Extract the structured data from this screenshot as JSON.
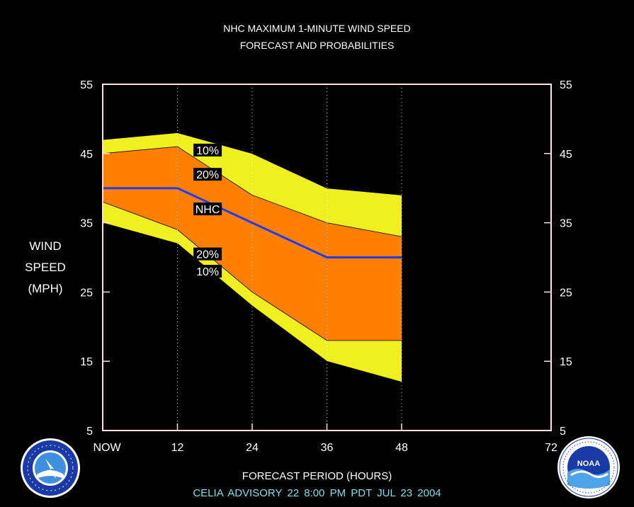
{
  "header": {
    "title_line1": "NHC MAXIMUM 1-MINUTE WIND SPEED",
    "title_line2": "FORECAST AND PROBABILITIES"
  },
  "ylabel": {
    "line1": "WIND",
    "line2": "SPEED",
    "line3": "(MPH)"
  },
  "xlabel": "FORECAST PERIOD (HOURS)",
  "advisory": "CELIA   ADVISORY  22 8:00  PM  PDT  JUL 23  2004",
  "logos": {
    "left_icon": "nws-logo-icon",
    "right_icon": "noaa-logo-icon",
    "right_text": "NOAA"
  },
  "colors": {
    "band_10": "#f0f020",
    "band_20": "#ff8000",
    "nhc_line": "#1e3cff",
    "frame": "#ffe0e0",
    "advisory_text": "#7fdfef"
  },
  "chart_data": {
    "type": "area",
    "x": [
      0,
      12,
      24,
      36,
      48
    ],
    "x_ticks": [
      0,
      12,
      24,
      36,
      48,
      72
    ],
    "x_tick_labels": [
      "NOW",
      "12",
      "24",
      "36",
      "48",
      "72"
    ],
    "xlim": [
      0,
      72
    ],
    "ylim": [
      5,
      55
    ],
    "y_ticks": [
      5,
      15,
      25,
      35,
      45,
      55
    ],
    "y_tick_labels": [
      "5",
      "15",
      "25",
      "35",
      "45",
      "55"
    ],
    "grid": "dotted vertical at 12, 24, 36, 48",
    "bands": [
      {
        "name": "10%",
        "upper": [
          47,
          48,
          45,
          40,
          39
        ],
        "lower": [
          35,
          32,
          23,
          15,
          12
        ],
        "color": "#f0f020"
      },
      {
        "name": "20%",
        "upper": [
          45,
          46,
          39,
          35,
          33
        ],
        "lower": [
          38,
          34,
          25,
          18,
          18
        ],
        "color": "#ff8000"
      }
    ],
    "series": [
      {
        "name": "NHC",
        "values": [
          40,
          40,
          35,
          30,
          30
        ],
        "color": "#1e3cff"
      }
    ],
    "annotations": [
      {
        "text": "10%",
        "x": 14,
        "y": 45.5
      },
      {
        "text": "20%",
        "x": 14,
        "y": 42
      },
      {
        "text": "NHC",
        "x": 14,
        "y": 37
      },
      {
        "text": "20%",
        "x": 14,
        "y": 30.5
      },
      {
        "text": "10%",
        "x": 14,
        "y": 28
      }
    ]
  }
}
